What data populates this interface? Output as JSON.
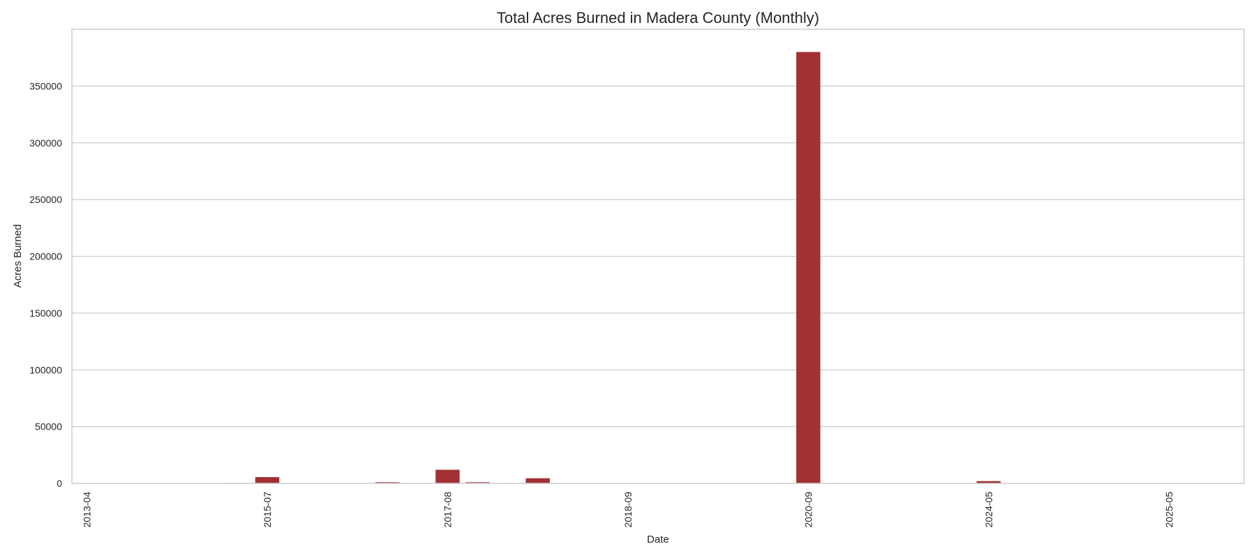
{
  "chart_data": {
    "type": "bar",
    "title": "Total Acres Burned in Madera County (Monthly)",
    "xlabel": "Date",
    "ylabel": "Acres Burned",
    "ylim": [
      0,
      400000
    ],
    "yticks": [
      0,
      50000,
      100000,
      150000,
      200000,
      250000,
      300000,
      350000
    ],
    "categories": [
      "2013-04",
      "",
      "",
      "",
      "",
      "",
      "2015-07",
      "",
      "",
      "",
      "",
      "",
      "2017-08",
      "",
      "",
      "",
      "",
      "",
      "2018-09",
      "",
      "",
      "",
      "",
      "",
      "2020-09",
      "",
      "",
      "",
      "",
      "",
      "2024-05",
      "",
      "",
      "",
      "",
      "",
      "2025-05",
      "",
      ""
    ],
    "values": [
      0,
      0,
      0,
      0,
      0,
      100,
      5500,
      0,
      0,
      0,
      1000,
      0,
      12000,
      1000,
      0,
      4500,
      0,
      0,
      0,
      0,
      0,
      0,
      0,
      200,
      380000,
      0,
      0,
      0,
      0,
      0,
      2000,
      0,
      0,
      0,
      0,
      0,
      0,
      0,
      0
    ],
    "bar_color": "#a23134",
    "grid": true,
    "legend": "none"
  }
}
